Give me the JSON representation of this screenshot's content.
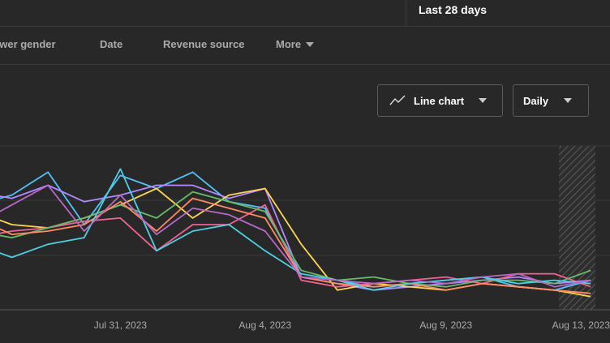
{
  "date_range": {
    "label": "Last 28 days"
  },
  "tabs": [
    {
      "label": "ewer gender"
    },
    {
      "label": "Date"
    },
    {
      "label": "Revenue source"
    },
    {
      "label": "More"
    }
  ],
  "controls": {
    "chart_type": {
      "label": "Line chart",
      "icon": "line-chart-icon"
    },
    "granularity": {
      "label": "Daily"
    }
  },
  "colors": {
    "background": "#282828",
    "gridline": "#3a3a3a",
    "text": "#aaaaaa",
    "accent_text": "#ffffff"
  },
  "chart_data": {
    "type": "line",
    "x_ticks": [
      "Jul 31, 2023",
      "Aug 4, 2023",
      "Aug 9, 2023",
      "Aug 13, 2023"
    ],
    "x_tick_index": [
      4,
      8,
      13,
      17
    ],
    "shaded_last_period": true,
    "grid": true,
    "series": [
      {
        "color": "#4fc3f7",
        "values": [
          5.2,
          5.5,
          6.2,
          4.6,
          6.1,
          5.7,
          6.2,
          5.3,
          5.1,
          3.0,
          2.9,
          2.7,
          2.8,
          2.9,
          3.0,
          2.7,
          2.6,
          2.9
        ]
      },
      {
        "color": "#b388ff",
        "values": [
          5.6,
          5.4,
          5.8,
          5.3,
          5.5,
          5.8,
          5.8,
          5.4,
          5.7,
          3.0,
          2.8,
          2.6,
          2.7,
          2.8,
          2.9,
          3.0,
          2.8,
          2.9
        ]
      },
      {
        "color": "#ffd54f",
        "values": [
          5.0,
          4.6,
          4.5,
          4.8,
          5.2,
          5.7,
          4.8,
          5.5,
          5.7,
          4.0,
          2.6,
          2.8,
          2.7,
          2.6,
          2.8,
          2.7,
          2.6,
          2.4
        ]
      },
      {
        "color": "#f06292",
        "values": [
          4.2,
          4.4,
          4.5,
          4.7,
          4.8,
          3.8,
          4.6,
          4.6,
          5.2,
          2.9,
          2.7,
          2.8,
          2.9,
          3.0,
          2.8,
          3.1,
          3.1,
          2.7
        ]
      },
      {
        "color": "#66bb6a",
        "values": [
          4.4,
          4.2,
          4.5,
          4.8,
          5.2,
          4.8,
          5.6,
          5.3,
          5.0,
          3.2,
          2.9,
          3.0,
          2.8,
          2.7,
          2.9,
          2.9,
          2.8,
          3.2
        ]
      },
      {
        "color": "#ff8a65",
        "values": [
          4.8,
          4.3,
          4.4,
          4.6,
          5.3,
          4.4,
          5.4,
          5.1,
          4.8,
          3.0,
          2.8,
          2.7,
          2.8,
          2.6,
          2.8,
          2.7,
          2.6,
          2.5
        ]
      },
      {
        "color": "#4dd0e1",
        "values": [
          4.0,
          3.6,
          4.0,
          4.2,
          6.3,
          3.8,
          4.4,
          4.6,
          3.8,
          3.1,
          2.9,
          2.6,
          2.8,
          2.9,
          3.0,
          2.8,
          2.9,
          2.8
        ]
      },
      {
        "color": "#ba68c8",
        "values": [
          4.6,
          5.2,
          5.8,
          4.4,
          5.5,
          4.3,
          5.1,
          4.9,
          4.4,
          3.0,
          2.9,
          2.8,
          2.9,
          2.8,
          3.0,
          3.1,
          2.7,
          2.9
        ]
      }
    ]
  }
}
